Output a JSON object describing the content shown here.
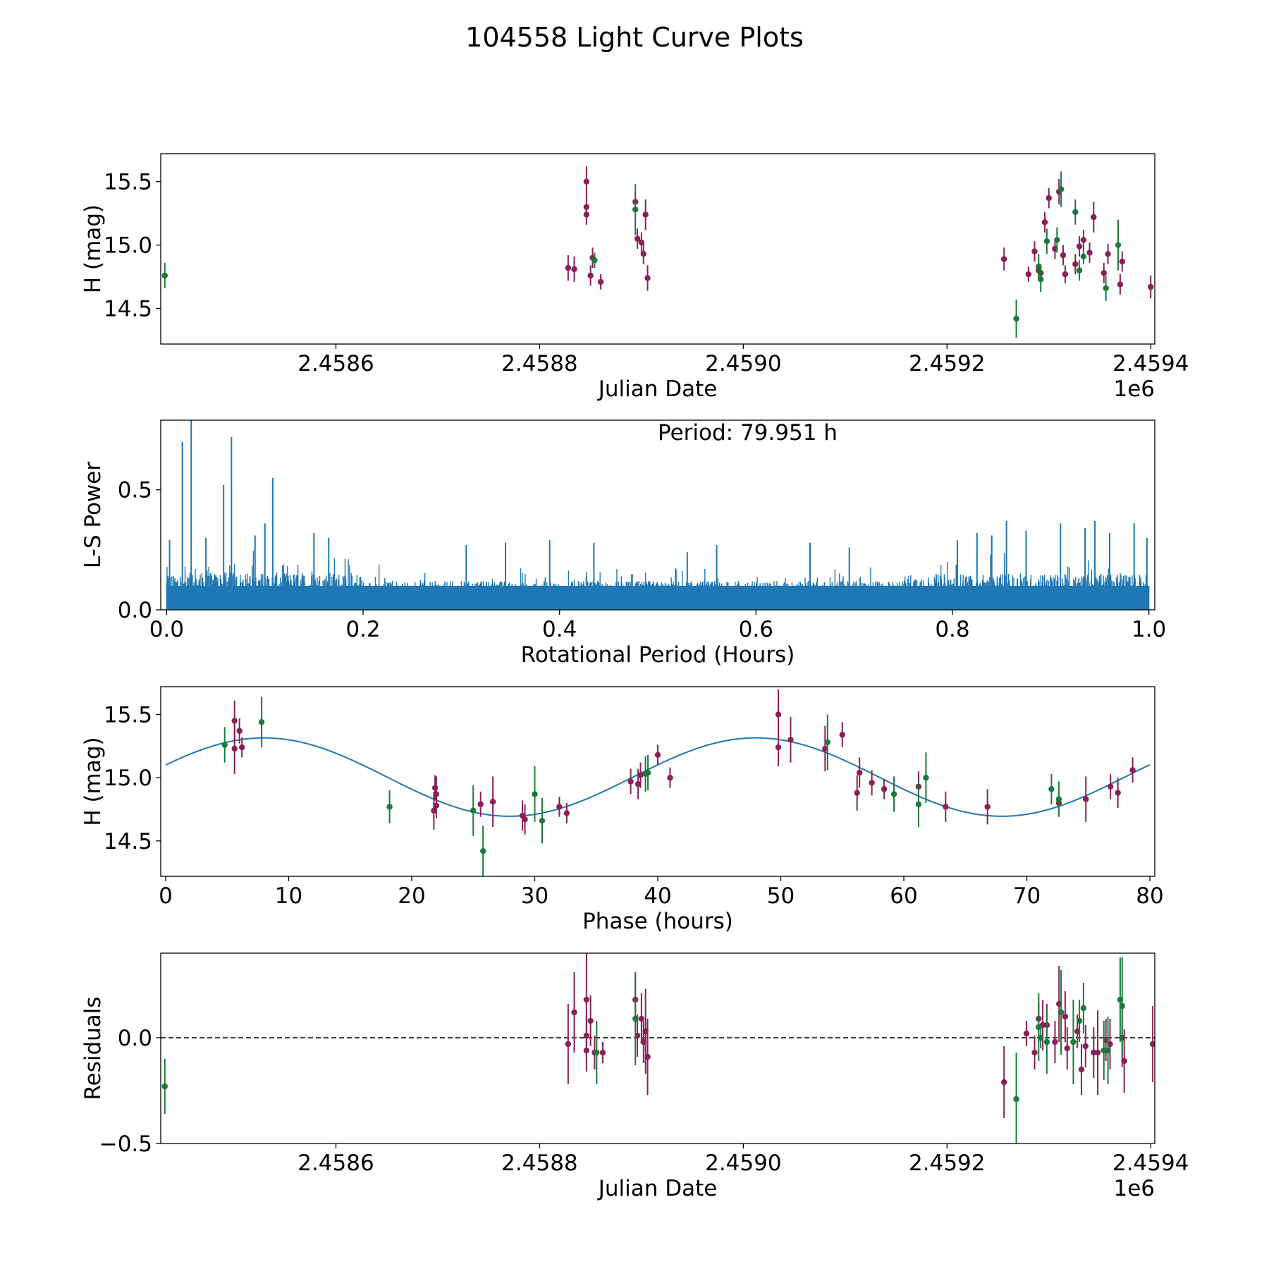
{
  "title": "104558 Light Curve Plots",
  "colors": {
    "maroon": "#8b1f57",
    "green": "#1b7a3a",
    "blue": "#1f77b4"
  },
  "chart_data": [
    {
      "id": "lc",
      "type": "scatter",
      "xlabel": "Julian Date",
      "ylabel": "H (mag)",
      "xlim": [
        2458428,
        2459404
      ],
      "ylim": [
        14.22,
        15.72
      ],
      "invert_y": false,
      "offset_text": "1e6",
      "x_ticks": [
        2458600,
        2458800,
        2459000,
        2459200,
        2459400
      ],
      "x_tick_labels": [
        "2.4586",
        "2.4588",
        "2.4590",
        "2.4592",
        "2.4594"
      ],
      "y_ticks": [
        14.5,
        15.0,
        15.5
      ],
      "y_tick_labels": [
        "14.5",
        "15.0",
        "15.5"
      ],
      "series": [
        {
          "name": "maroon",
          "color": "maroon",
          "points": [
            [
              2458828,
              14.82,
              0.1
            ],
            [
              2458834,
              14.81,
              0.1
            ],
            [
              2458846,
              15.5,
              0.12
            ],
            [
              2458846,
              15.3,
              0.08
            ],
            [
              2458846,
              15.24,
              0.08
            ],
            [
              2458850,
              14.76,
              0.08
            ],
            [
              2458852,
              14.9,
              0.08
            ],
            [
              2458860,
              14.71,
              0.06
            ],
            [
              2458894,
              15.34,
              0.08
            ],
            [
              2458896,
              15.05,
              0.08
            ],
            [
              2458900,
              15.02,
              0.08
            ],
            [
              2458902,
              14.93,
              0.08
            ],
            [
              2458904,
              15.24,
              0.12
            ],
            [
              2458906,
              14.74,
              0.1
            ],
            [
              2459256,
              14.89,
              0.09
            ],
            [
              2459286,
              14.95,
              0.08
            ],
            [
              2459280,
              14.77,
              0.06
            ],
            [
              2459290,
              14.8,
              0.06
            ],
            [
              2459292,
              14.78,
              0.07
            ],
            [
              2459296,
              15.18,
              0.08
            ],
            [
              2459300,
              15.37,
              0.08
            ],
            [
              2459306,
              14.97,
              0.08
            ],
            [
              2459310,
              15.42,
              0.1
            ],
            [
              2459314,
              14.92,
              0.08
            ],
            [
              2459316,
              14.77,
              0.07
            ],
            [
              2459326,
              14.85,
              0.08
            ],
            [
              2459330,
              14.99,
              0.08
            ],
            [
              2459334,
              15.04,
              0.08
            ],
            [
              2459340,
              14.94,
              0.08
            ],
            [
              2459344,
              15.22,
              0.12
            ],
            [
              2459354,
              14.78,
              0.08
            ],
            [
              2459358,
              14.93,
              0.08
            ],
            [
              2459370,
              14.69,
              0.08
            ],
            [
              2459372,
              14.87,
              0.08
            ],
            [
              2459400,
              14.67,
              0.09
            ]
          ]
        },
        {
          "name": "green",
          "color": "green",
          "points": [
            [
              2458432,
              14.76,
              0.1
            ],
            [
              2458854,
              14.88,
              0.06
            ],
            [
              2458894,
              15.28,
              0.2
            ],
            [
              2459268,
              14.42,
              0.15
            ],
            [
              2459290,
              14.83,
              0.1
            ],
            [
              2459292,
              14.73,
              0.1
            ],
            [
              2459298,
              15.03,
              0.1
            ],
            [
              2459308,
              15.04,
              0.1
            ],
            [
              2459312,
              15.44,
              0.14
            ],
            [
              2459326,
              15.26,
              0.1
            ],
            [
              2459330,
              14.8,
              0.08
            ],
            [
              2459334,
              14.91,
              0.06
            ],
            [
              2459356,
              14.66,
              0.1
            ],
            [
              2459368,
              15.0,
              0.2
            ]
          ]
        }
      ]
    },
    {
      "id": "ls",
      "type": "line",
      "xlabel": "Rotational Period (Hours)",
      "ylabel": "L-S Power",
      "xlim": [
        -0.006,
        1.006
      ],
      "ylim": [
        0,
        0.79
      ],
      "x_ticks": [
        0.0,
        0.2,
        0.4,
        0.6,
        0.8,
        1.0
      ],
      "x_tick_labels": [
        "0.0",
        "0.2",
        "0.4",
        "0.6",
        "0.8",
        "1.0"
      ],
      "y_ticks": [
        0.0,
        0.5
      ],
      "y_tick_labels": [
        "0.0",
        "0.5"
      ],
      "annotation": "Period: 79.951 h",
      "color": "blue",
      "noise_samples": 2400,
      "peaks": [
        [
          0.016,
          0.7
        ],
        [
          0.025,
          0.79
        ],
        [
          0.058,
          0.52
        ],
        [
          0.066,
          0.72
        ],
        [
          0.108,
          0.55
        ],
        [
          0.003,
          0.29
        ],
        [
          0.04,
          0.3
        ],
        [
          0.09,
          0.31
        ],
        [
          0.1,
          0.36
        ],
        [
          0.15,
          0.32
        ],
        [
          0.165,
          0.3
        ],
        [
          0.305,
          0.27
        ],
        [
          0.345,
          0.28
        ],
        [
          0.39,
          0.29
        ],
        [
          0.435,
          0.28
        ],
        [
          0.53,
          0.24
        ],
        [
          0.56,
          0.27
        ],
        [
          0.655,
          0.28
        ],
        [
          0.695,
          0.26
        ],
        [
          0.805,
          0.29
        ],
        [
          0.825,
          0.32
        ],
        [
          0.84,
          0.31
        ],
        [
          0.855,
          0.37
        ],
        [
          0.875,
          0.33
        ],
        [
          0.91,
          0.36
        ],
        [
          0.935,
          0.34
        ],
        [
          0.945,
          0.37
        ],
        [
          0.96,
          0.32
        ],
        [
          0.985,
          0.36
        ],
        [
          0.998,
          0.3
        ]
      ]
    },
    {
      "id": "ph",
      "type": "scatter",
      "xlabel": "Phase (hours)",
      "ylabel": "H (mag)",
      "xlim": [
        -0.4,
        80.4
      ],
      "ylim": [
        14.22,
        15.72
      ],
      "invert_y": false,
      "x_ticks": [
        0,
        10,
        20,
        30,
        40,
        50,
        60,
        70,
        80
      ],
      "x_tick_labels": [
        "0",
        "10",
        "20",
        "30",
        "40",
        "50",
        "60",
        "70",
        "80"
      ],
      "y_ticks": [
        14.5,
        15.0,
        15.5
      ],
      "y_tick_labels": [
        "14.5",
        "15.0",
        "15.5"
      ],
      "model": {
        "mean": 15.005,
        "amplitude": 0.31,
        "period": 39.975,
        "peak_at": 8.0
      },
      "series": [
        {
          "name": "maroon",
          "color": "maroon",
          "points": [
            [
              5.6,
              15.45,
              0.16
            ],
            [
              5.6,
              15.23,
              0.2
            ],
            [
              6.0,
              15.37,
              0.1
            ],
            [
              6.2,
              15.24,
              0.08
            ],
            [
              21.8,
              14.74,
              0.15
            ],
            [
              21.9,
              14.92,
              0.1
            ],
            [
              22.0,
              14.87,
              0.14
            ],
            [
              22.0,
              14.78,
              0.1
            ],
            [
              25.6,
              14.79,
              0.1
            ],
            [
              26.6,
              14.81,
              0.2
            ],
            [
              29.0,
              14.7,
              0.12
            ],
            [
              29.2,
              14.67,
              0.12
            ],
            [
              32.0,
              14.77,
              0.08
            ],
            [
              32.6,
              14.72,
              0.08
            ],
            [
              37.8,
              14.97,
              0.1
            ],
            [
              38.4,
              14.95,
              0.12
            ],
            [
              38.6,
              15.02,
              0.1
            ],
            [
              40.0,
              15.18,
              0.08
            ],
            [
              41.0,
              15.0,
              0.08
            ],
            [
              49.8,
              15.5,
              0.2
            ],
            [
              49.8,
              15.24,
              0.15
            ],
            [
              50.8,
              15.3,
              0.18
            ],
            [
              53.6,
              15.23,
              0.18
            ],
            [
              55.0,
              15.34,
              0.1
            ],
            [
              56.2,
              14.88,
              0.14
            ],
            [
              56.4,
              15.04,
              0.12
            ],
            [
              57.4,
              14.96,
              0.1
            ],
            [
              58.4,
              14.91,
              0.08
            ],
            [
              61.2,
              14.93,
              0.12
            ],
            [
              63.4,
              14.77,
              0.12
            ],
            [
              66.8,
              14.77,
              0.14
            ],
            [
              72.6,
              14.8,
              0.1
            ],
            [
              74.8,
              14.83,
              0.18
            ],
            [
              76.8,
              14.93,
              0.1
            ],
            [
              77.4,
              14.88,
              0.12
            ],
            [
              78.6,
              15.06,
              0.1
            ]
          ]
        },
        {
          "name": "green",
          "color": "green",
          "points": [
            [
              4.8,
              15.26,
              0.14
            ],
            [
              7.8,
              15.44,
              0.2
            ],
            [
              18.2,
              14.77,
              0.13
            ],
            [
              25.0,
              14.74,
              0.2
            ],
            [
              25.8,
              14.42,
              0.2
            ],
            [
              30.0,
              14.87,
              0.22
            ],
            [
              30.6,
              14.66,
              0.18
            ],
            [
              39.0,
              15.03,
              0.14
            ],
            [
              39.2,
              15.04,
              0.14
            ],
            [
              53.8,
              15.28,
              0.22
            ],
            [
              59.2,
              14.87,
              0.14
            ],
            [
              61.2,
              14.79,
              0.18
            ],
            [
              61.8,
              15.0,
              0.2
            ],
            [
              72.0,
              14.91,
              0.12
            ],
            [
              72.6,
              14.83,
              0.14
            ]
          ]
        }
      ]
    },
    {
      "id": "res",
      "type": "scatter",
      "xlabel": "Julian Date",
      "ylabel": "Residuals",
      "xlim": [
        2458428,
        2459404
      ],
      "ylim": [
        -0.5,
        0.4
      ],
      "invert_y": false,
      "offset_text": "1e6",
      "zero_line": true,
      "x_ticks": [
        2458600,
        2458800,
        2459000,
        2459200,
        2459400
      ],
      "x_tick_labels": [
        "2.4586",
        "2.4588",
        "2.4590",
        "2.4592",
        "2.4594"
      ],
      "y_ticks": [
        -0.5,
        0.0
      ],
      "y_tick_labels": [
        "−0.5",
        "0.0"
      ],
      "series": [
        {
          "name": "maroon",
          "color": "maroon",
          "points": [
            [
              2458828,
              -0.03,
              0.19
            ],
            [
              2458834,
              0.12,
              0.19
            ],
            [
              2458846,
              0.18,
              0.22
            ],
            [
              2458846,
              0.01,
              0.1
            ],
            [
              2458846,
              -0.06,
              0.1
            ],
            [
              2458850,
              0.08,
              0.12
            ],
            [
              2458854,
              -0.07,
              0.08
            ],
            [
              2458862,
              -0.07,
              0.05
            ],
            [
              2458894,
              0.18,
              0.12
            ],
            [
              2458896,
              0.01,
              0.1
            ],
            [
              2458900,
              0.09,
              0.12
            ],
            [
              2458902,
              -0.02,
              0.1
            ],
            [
              2458904,
              0.03,
              0.2
            ],
            [
              2458906,
              -0.09,
              0.18
            ],
            [
              2459256,
              -0.21,
              0.17
            ],
            [
              2459278,
              0.02,
              0.06
            ],
            [
              2459286,
              -0.07,
              0.08
            ],
            [
              2459290,
              0.09,
              0.08
            ],
            [
              2459294,
              0.06,
              0.12
            ],
            [
              2459298,
              0.06,
              0.1
            ],
            [
              2459306,
              -0.02,
              0.1
            ],
            [
              2459310,
              0.16,
              0.18
            ],
            [
              2459316,
              0.1,
              0.12
            ],
            [
              2459318,
              -0.05,
              0.1
            ],
            [
              2459328,
              0.03,
              0.08
            ],
            [
              2459332,
              -0.15,
              0.12
            ],
            [
              2459336,
              -0.04,
              0.1
            ],
            [
              2459344,
              -0.07,
              0.12
            ],
            [
              2459348,
              -0.07,
              0.2
            ],
            [
              2459356,
              -0.01,
              0.1
            ],
            [
              2459360,
              -0.03,
              0.12
            ],
            [
              2459372,
              0.0,
              0.14
            ],
            [
              2459374,
              -0.11,
              0.15
            ],
            [
              2459402,
              -0.03,
              0.18
            ]
          ]
        },
        {
          "name": "green",
          "color": "green",
          "points": [
            [
              2458432,
              -0.23,
              0.13
            ],
            [
              2458856,
              -0.07,
              0.15
            ],
            [
              2458894,
              0.09,
              0.22
            ],
            [
              2459268,
              -0.29,
              0.22
            ],
            [
              2459290,
              0.05,
              0.16
            ],
            [
              2459292,
              0.0,
              0.05
            ],
            [
              2459298,
              -0.02,
              0.15
            ],
            [
              2459312,
              0.12,
              0.2
            ],
            [
              2459324,
              -0.02,
              0.2
            ],
            [
              2459330,
              0.08,
              0.1
            ],
            [
              2459334,
              0.14,
              0.12
            ],
            [
              2459354,
              -0.06,
              0.14
            ],
            [
              2459358,
              -0.06,
              0.16
            ],
            [
              2459370,
              0.18,
              0.2
            ],
            [
              2459372,
              0.15,
              0.23
            ]
          ]
        }
      ]
    }
  ]
}
